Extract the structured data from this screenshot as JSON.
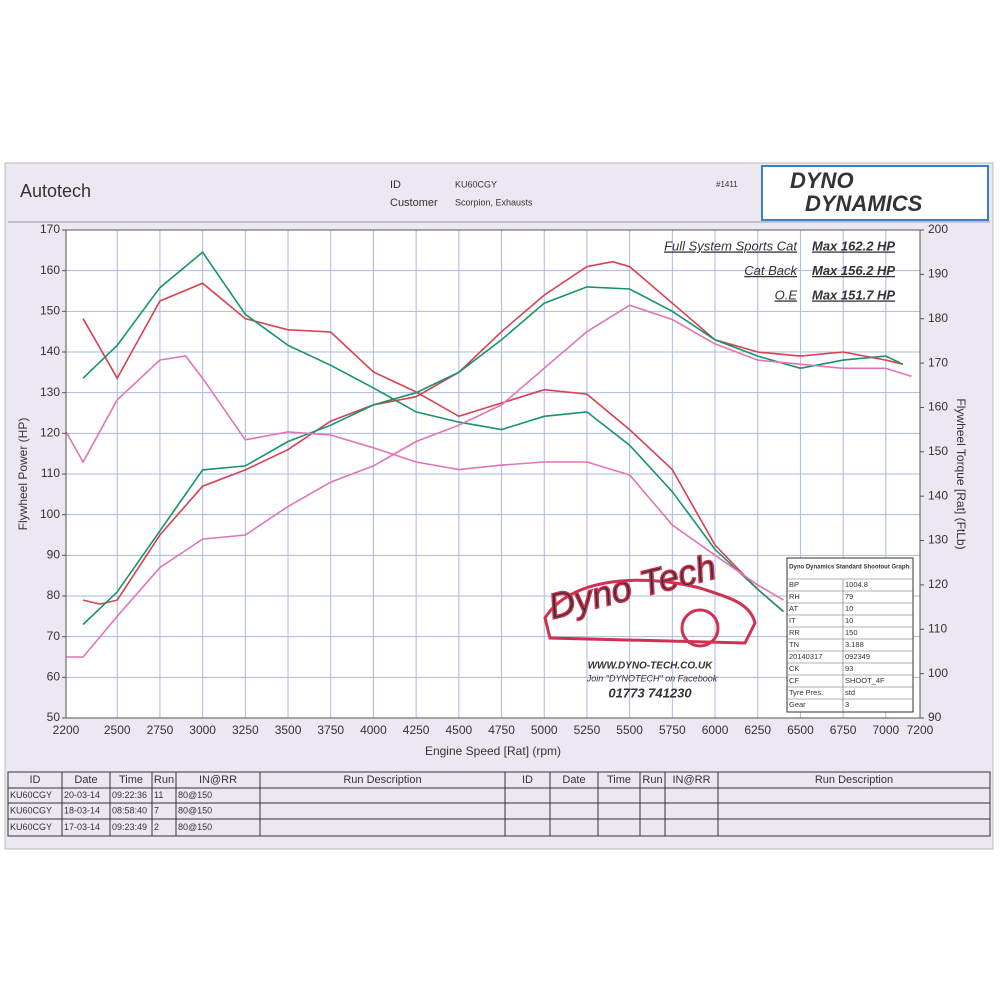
{
  "header": {
    "company": "Autotech",
    "id_label": "ID",
    "id_value": "KU60CGY",
    "customer_label": "Customer",
    "customer_value": "Scorpion, Exhausts",
    "sheet_no": "#1411",
    "logo_top": "DYNO",
    "logo_bottom": "DYNAMICS"
  },
  "chart_data": {
    "type": "line",
    "x_label": "Engine Speed [Rat] (rpm)",
    "y_label": "Flywheel Power (HP)",
    "y2_label": "Flywheel Torque [Rat] (FtLb)",
    "xlim": [
      2200,
      7200
    ],
    "xticks": [
      2200,
      2500,
      2750,
      3000,
      3250,
      3500,
      3750,
      4000,
      4250,
      4500,
      4750,
      5000,
      5250,
      5500,
      5750,
      6000,
      6250,
      6500,
      6750,
      7000,
      7200
    ],
    "ylim": [
      50,
      170
    ],
    "yticks": [
      50,
      60,
      70,
      80,
      90,
      100,
      110,
      120,
      130,
      140,
      150,
      160,
      170
    ],
    "y2lim": [
      90,
      200
    ],
    "y2ticks": [
      90,
      100,
      110,
      120,
      130,
      140,
      150,
      160,
      170,
      180,
      190,
      200
    ],
    "grid": true,
    "series": [
      {
        "name": "Full System Sports Cat",
        "max_label": "Max 162.2 HP",
        "color": "#d8404f",
        "power_x": [
          2300,
          2400,
          2500,
          2750,
          3000,
          3250,
          3500,
          3750,
          4000,
          4250,
          4500,
          4750,
          5000,
          5250,
          5400,
          5500,
          5750,
          6000,
          6250,
          6500,
          6750,
          7000,
          7100
        ],
        "power": [
          79,
          78,
          79,
          95,
          107,
          111,
          116,
          123,
          127,
          129,
          135,
          145,
          154,
          161,
          162.2,
          161,
          152,
          143,
          140,
          139,
          140,
          138,
          137
        ],
        "torque_x": [
          2300,
          2500,
          2750,
          3000,
          3250,
          3500,
          3750,
          4000,
          4250,
          4500,
          4750,
          5000,
          5250,
          5500,
          5750,
          6000,
          6250,
          6400
        ],
        "torque": [
          180,
          166.6,
          184,
          188,
          180,
          177.5,
          177,
          168,
          163.5,
          158,
          161,
          164,
          163,
          155,
          146,
          129,
          119,
          114
        ]
      },
      {
        "name": "Cat Back",
        "max_label": "Max 156.2 HP",
        "color": "#17936a",
        "power_x": [
          2300,
          2500,
          2750,
          3000,
          3250,
          3500,
          3750,
          4000,
          4250,
          4500,
          4750,
          5000,
          5250,
          5500,
          5750,
          6000,
          6250,
          6500,
          6750,
          7000,
          7100
        ],
        "power": [
          73,
          81,
          96,
          111,
          112,
          118,
          122,
          127,
          130,
          135,
          143,
          152,
          156,
          155.5,
          150,
          143,
          139,
          136,
          138,
          139,
          137
        ],
        "torque_x": [
          2300,
          2500,
          2750,
          3000,
          3250,
          3500,
          3750,
          4000,
          4250,
          4500,
          4750,
          5000,
          5250,
          5500,
          5750,
          6000,
          6250,
          6400
        ],
        "torque": [
          166.6,
          174,
          187,
          195,
          181,
          174,
          169.5,
          164.4,
          159,
          156.7,
          155,
          158,
          159,
          151.5,
          141,
          128,
          119,
          114
        ]
      },
      {
        "name": "O.E",
        "max_label": "Max 151.7 HP",
        "color": "#e274b6",
        "power_x": [
          2200,
          2300,
          2500,
          2750,
          3000,
          3250,
          3500,
          3750,
          4000,
          4250,
          4500,
          4750,
          5000,
          5250,
          5500,
          5750,
          6000,
          6250,
          6500,
          6750,
          7000,
          7150
        ],
        "power": [
          65,
          65,
          75,
          87,
          94,
          95,
          102,
          108,
          112,
          118,
          122,
          127,
          136,
          145,
          151.5,
          148,
          142,
          138,
          137,
          136,
          136,
          134
        ],
        "torque_x": [
          2200,
          2300,
          2500,
          2750,
          2900,
          3000,
          3250,
          3500,
          3750,
          4000,
          4250,
          4500,
          4750,
          5000,
          5250,
          5500,
          5750,
          6000,
          6250,
          6400
        ],
        "torque": [
          154.5,
          147.7,
          161.7,
          170.7,
          171.6,
          166.6,
          152.7,
          154.5,
          153.8,
          150.9,
          147.7,
          146,
          147,
          147.7,
          147.7,
          144.8,
          133.5,
          126.7,
          120,
          116.6
        ]
      }
    ]
  },
  "watermark": {
    "logo": "Dyno Tech",
    "url": "WWW.DYNO-TECH.CO.UK",
    "facebook": "Join \"DYNOTECH\" on Facebook",
    "phone": "01773 741230"
  },
  "info_box": {
    "title": "Dyno Dynamics Standard Shootout Graph.",
    "rows": [
      [
        "BP",
        "1004.8"
      ],
      [
        "RH",
        "79"
      ],
      [
        "AT",
        "10"
      ],
      [
        "IT",
        "10"
      ],
      [
        "RR",
        "150"
      ],
      [
        "TN",
        "3.188"
      ],
      [
        "20140317",
        "092349"
      ],
      [
        "CK",
        "93"
      ],
      [
        "CF",
        "SHOOT_4F"
      ],
      [
        "Tyre Pres.",
        "std"
      ],
      [
        "Gear",
        "3"
      ]
    ]
  },
  "run_table": {
    "header": [
      "ID",
      "Date",
      "Time",
      "Run",
      "IN@RR",
      "Run Description",
      "ID",
      "Date",
      "Time",
      "Run",
      "IN@RR",
      "Run Description"
    ],
    "rows": [
      [
        "KU60CGY",
        "20-03-14",
        "09:22:36",
        "11",
        "80@150"
      ],
      [
        "KU60CGY",
        "18-03-14",
        "08:58:40",
        "7",
        "80@150"
      ],
      [
        "KU60CGY",
        "17-03-14",
        "09:23:49",
        "2",
        "80@150"
      ]
    ]
  }
}
